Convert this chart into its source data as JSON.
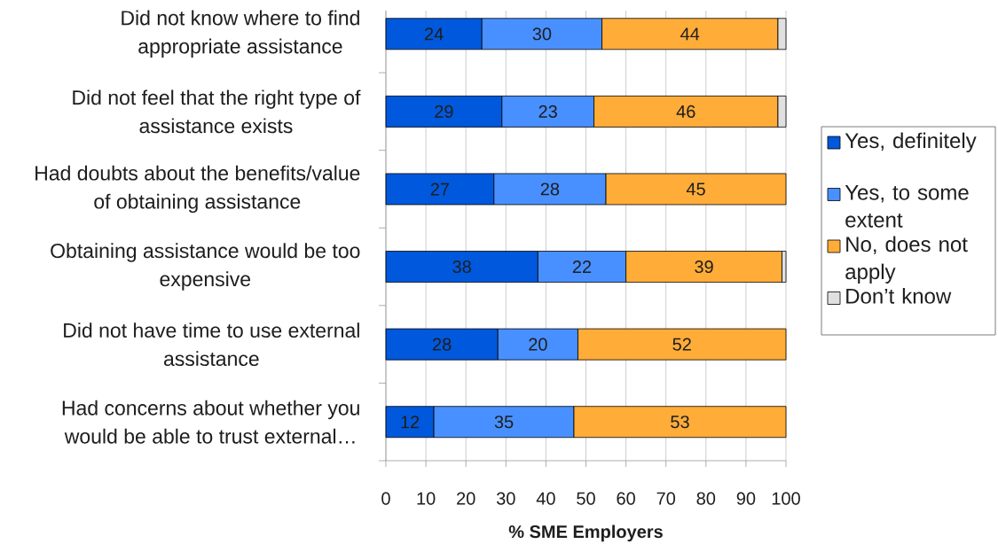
{
  "chart_data": {
    "type": "bar",
    "orientation": "horizontal",
    "stacked": true,
    "categories": [
      "Did not know where to find appropriate assistance",
      "Did not feel that the right type of assistance exists",
      "Had doubts about the benefits/value of obtaining assistance",
      "Obtaining assistance would be too expensive",
      "Did not have time to use external assistance",
      "Had concerns about whether you would be able to trust external…"
    ],
    "xlabel": "% SME Employers",
    "xlim": [
      0,
      100
    ],
    "xticks": [
      0,
      10,
      20,
      30,
      40,
      50,
      60,
      70,
      80,
      90,
      100
    ],
    "grid": "x",
    "legend": "right",
    "series": [
      {
        "name": "Yes, definitely",
        "color": "#0058dc",
        "values": [
          24,
          29,
          27,
          38,
          28,
          12
        ],
        "value_labels": [
          "24",
          "29",
          "27",
          "38",
          "28",
          "12"
        ]
      },
      {
        "name": "Yes, to some extent",
        "color": "#4890ff",
        "values": [
          30,
          23,
          28,
          22,
          20,
          35
        ],
        "value_labels": [
          "30",
          "23",
          "28",
          "22",
          "20",
          "35"
        ]
      },
      {
        "name": "No, does not apply",
        "color": "#ffac38",
        "values": [
          44,
          46,
          45,
          39,
          52,
          53
        ],
        "value_labels": [
          "44",
          "46",
          "45",
          "39",
          "52",
          "53"
        ]
      },
      {
        "name": "Don’t know",
        "color": "#e0e0e0",
        "values": [
          2,
          2,
          null,
          1,
          null,
          null
        ]
      }
    ]
  }
}
